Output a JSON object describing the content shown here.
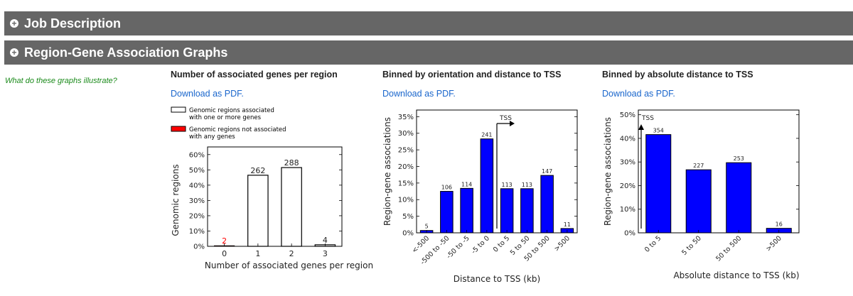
{
  "sections": {
    "job_description": "Job Description",
    "region_gene": "Region-Gene Association Graphs"
  },
  "help_link": "What do these graphs illustrate?",
  "download_label": "Download as PDF.",
  "colors": {
    "header_bg": "#666666",
    "bar_blue": "#0000ff",
    "bar_red": "#ff0000",
    "link_blue": "#1a66cc",
    "help_green": "#1a8a1a"
  },
  "chart_data": [
    {
      "type": "bar",
      "title": "Number of associated genes per region",
      "xlabel": "Number of associated genes per region",
      "ylabel": "Genomic regions",
      "categories": [
        "0",
        "1",
        "2",
        "3"
      ],
      "ylim": [
        0,
        65
      ],
      "yticks": [
        "0%",
        "10%",
        "20%",
        "30%",
        "40%",
        "50%",
        "60%"
      ],
      "legend": [
        {
          "name": "Genomic regions associated with one or more genes",
          "line1": "Genomic regions associated",
          "line2": "with one or more genes"
        },
        {
          "name": "Genomic regions not associated with any genes",
          "line1": "Genomic regions not associated",
          "line2": "with any genes"
        }
      ],
      "series": [
        {
          "name": "Genomic regions associated with one or more genes",
          "values": [
            0,
            46.5,
            51.5,
            1
          ]
        },
        {
          "name": "Genomic regions not associated with any genes",
          "values": [
            0.4,
            0,
            0,
            0
          ]
        }
      ],
      "labels": [
        "2",
        "262",
        "288",
        "4"
      ]
    },
    {
      "type": "bar",
      "title": "Binned by orientation and distance to TSS",
      "xlabel": "Distance to TSS (kb)",
      "ylabel": "Region-gene associations",
      "categories": [
        "<-500",
        "-500 to -50",
        "-50 to -5",
        "-5 to 0",
        "0 to 5",
        "5 to 50",
        "50 to 500",
        ">500"
      ],
      "values": [
        0.7,
        12.5,
        13.4,
        28.3,
        13.3,
        13.3,
        17.3,
        1.3
      ],
      "labels": [
        "5",
        "106",
        "114",
        "241",
        "113",
        "113",
        "147",
        "11"
      ],
      "ylim": [
        0,
        37
      ],
      "yticks": [
        "0%",
        "5%",
        "10%",
        "15%",
        "20%",
        "25%",
        "30%",
        "35%"
      ],
      "annotation": "TSS"
    },
    {
      "type": "bar",
      "title": "Binned by absolute distance to TSS",
      "xlabel": "Absolute distance to TSS (kb)",
      "ylabel": "Region-gene associations",
      "categories": [
        "0 to 5",
        "5 to 50",
        "50 to 500",
        ">500"
      ],
      "values": [
        41.6,
        26.7,
        29.7,
        1.9
      ],
      "labels": [
        "354",
        "227",
        "253",
        "16"
      ],
      "ylim": [
        0,
        52
      ],
      "yticks": [
        "0%",
        "10%",
        "20%",
        "30%",
        "40%",
        "50%"
      ],
      "annotation": "TSS"
    }
  ]
}
